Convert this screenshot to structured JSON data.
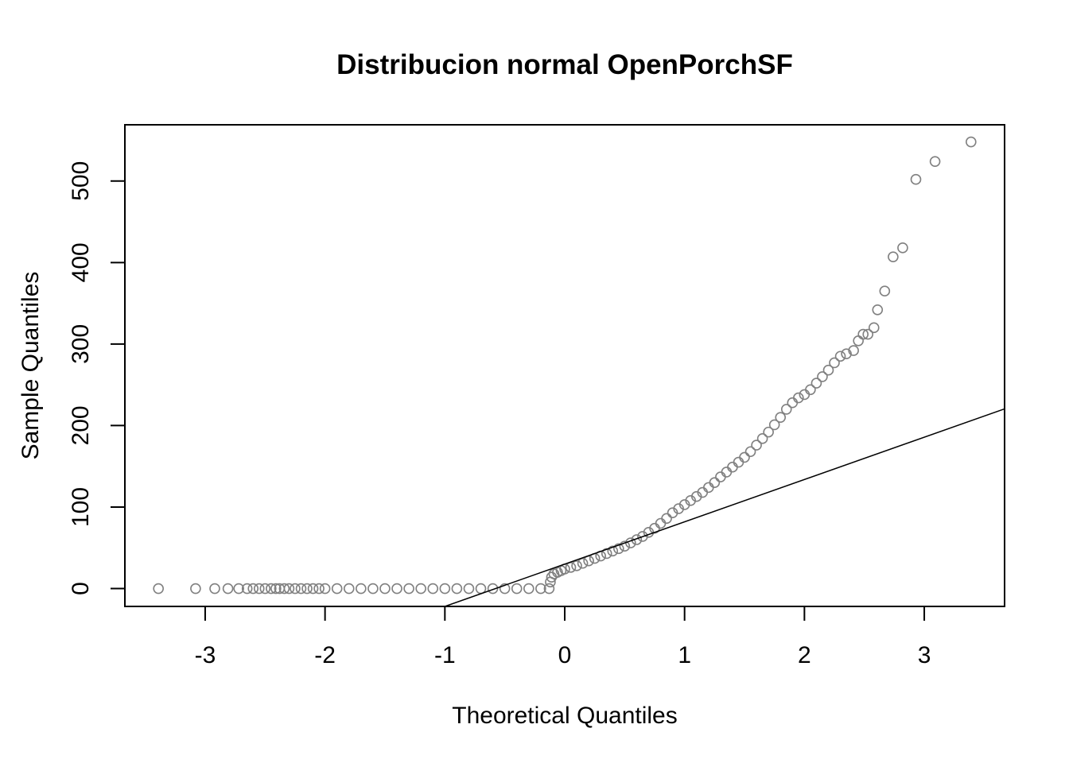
{
  "chart_data": {
    "type": "scatter",
    "title": "Distribucion normal OpenPorchSF",
    "xlabel": "Theoretical Quantiles",
    "ylabel": "Sample Quantiles",
    "xlim": [
      -3.67,
      3.67
    ],
    "ylim": [
      -21.9,
      569.0
    ],
    "xticks": [
      -3,
      -2,
      -1,
      0,
      1,
      2,
      3
    ],
    "yticks": [
      0,
      100,
      200,
      300,
      400,
      500
    ],
    "x_tick_labels": [
      "-3",
      "-2",
      "-1",
      "0",
      "1",
      "2",
      "3"
    ],
    "y_tick_labels": [
      "0",
      "100",
      "200",
      "300",
      "400",
      "500"
    ],
    "grid": false,
    "point_color": "#808080",
    "reference_line": {
      "intercept": 30.0,
      "slope": 51.9,
      "color": "#000000"
    },
    "series": [
      {
        "points": [
          [
            -3.39,
            0
          ],
          [
            -3.08,
            0
          ],
          [
            -2.92,
            0
          ],
          [
            -2.81,
            0
          ],
          [
            -2.72,
            0
          ],
          [
            -2.65,
            0
          ],
          [
            -2.6,
            0
          ],
          [
            -2.55,
            0
          ],
          [
            -2.5,
            0
          ],
          [
            -2.45,
            0
          ],
          [
            -2.41,
            0
          ],
          [
            -2.38,
            0
          ],
          [
            -2.34,
            0
          ],
          [
            -2.3,
            0
          ],
          [
            -2.25,
            0
          ],
          [
            -2.2,
            0
          ],
          [
            -2.15,
            0
          ],
          [
            -2.1,
            0
          ],
          [
            -2.05,
            0
          ],
          [
            -2.0,
            0
          ],
          [
            -1.9,
            0
          ],
          [
            -1.8,
            0
          ],
          [
            -1.7,
            0
          ],
          [
            -1.6,
            0
          ],
          [
            -1.5,
            0
          ],
          [
            -1.4,
            0
          ],
          [
            -1.3,
            0
          ],
          [
            -1.2,
            0
          ],
          [
            -1.1,
            0
          ],
          [
            -1.0,
            0
          ],
          [
            -0.9,
            0
          ],
          [
            -0.8,
            0
          ],
          [
            -0.7,
            0
          ],
          [
            -0.6,
            0
          ],
          [
            -0.5,
            0
          ],
          [
            -0.4,
            0
          ],
          [
            -0.3,
            0
          ],
          [
            -0.2,
            0
          ],
          [
            -0.13,
            0
          ],
          [
            -0.12,
            8
          ],
          [
            -0.11,
            14
          ],
          [
            -0.09,
            18
          ],
          [
            -0.06,
            20
          ],
          [
            -0.03,
            22
          ],
          [
            0.0,
            24
          ],
          [
            0.05,
            26
          ],
          [
            0.1,
            28
          ],
          [
            0.15,
            31
          ],
          [
            0.2,
            34
          ],
          [
            0.25,
            37
          ],
          [
            0.3,
            40
          ],
          [
            0.35,
            43
          ],
          [
            0.4,
            46
          ],
          [
            0.45,
            49
          ],
          [
            0.5,
            52
          ],
          [
            0.55,
            56
          ],
          [
            0.6,
            60
          ],
          [
            0.65,
            64
          ],
          [
            0.7,
            69
          ],
          [
            0.75,
            74
          ],
          [
            0.8,
            80
          ],
          [
            0.85,
            86
          ],
          [
            0.9,
            93
          ],
          [
            0.95,
            98
          ],
          [
            1.0,
            103
          ],
          [
            1.05,
            108
          ],
          [
            1.1,
            113
          ],
          [
            1.15,
            118
          ],
          [
            1.2,
            124
          ],
          [
            1.25,
            130
          ],
          [
            1.3,
            137
          ],
          [
            1.35,
            143
          ],
          [
            1.4,
            149
          ],
          [
            1.45,
            155
          ],
          [
            1.5,
            161
          ],
          [
            1.55,
            168
          ],
          [
            1.6,
            176
          ],
          [
            1.65,
            184
          ],
          [
            1.7,
            192
          ],
          [
            1.75,
            201
          ],
          [
            1.8,
            210
          ],
          [
            1.85,
            220
          ],
          [
            1.9,
            228
          ],
          [
            1.95,
            234
          ],
          [
            2.0,
            238
          ],
          [
            2.05,
            244
          ],
          [
            2.1,
            252
          ],
          [
            2.15,
            260
          ],
          [
            2.2,
            268
          ],
          [
            2.25,
            277
          ],
          [
            2.3,
            285
          ],
          [
            2.35,
            288
          ],
          [
            2.41,
            292
          ],
          [
            2.45,
            304
          ],
          [
            2.49,
            312
          ],
          [
            2.53,
            312
          ],
          [
            2.58,
            320
          ],
          [
            2.61,
            342
          ],
          [
            2.67,
            365
          ],
          [
            2.74,
            407
          ],
          [
            2.82,
            418
          ],
          [
            2.93,
            502
          ],
          [
            3.09,
            524
          ],
          [
            3.39,
            548
          ]
        ]
      }
    ]
  }
}
